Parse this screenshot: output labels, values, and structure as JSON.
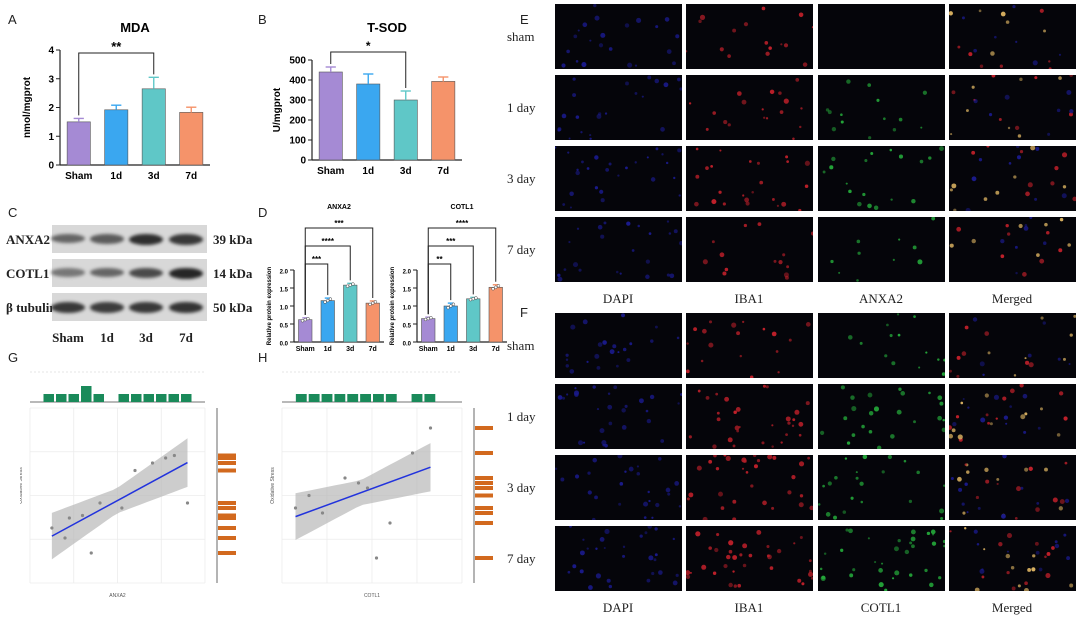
{
  "panels": {
    "A": {
      "letter": "A"
    },
    "B": {
      "letter": "B"
    },
    "C": {
      "letter": "C"
    },
    "D": {
      "letter": "D"
    },
    "E": {
      "letter": "E"
    },
    "F": {
      "letter": "F"
    },
    "G": {
      "letter": "G"
    },
    "H": {
      "letter": "H"
    }
  },
  "chart_data": [
    {
      "id": "A",
      "type": "bar",
      "title": "MDA",
      "ylabel": "nmol/mgprot",
      "categories": [
        "Sham",
        "1d",
        "3d",
        "7d"
      ],
      "values": [
        1.5,
        1.92,
        2.65,
        1.83
      ],
      "errors": [
        0.12,
        0.16,
        0.4,
        0.18
      ],
      "colors": [
        "#a58ad4",
        "#3aa7f0",
        "#5fc7c7",
        "#f5936a"
      ],
      "ylim": [
        0,
        4
      ],
      "yticks": [
        "0",
        "1",
        "2",
        "3",
        "4"
      ],
      "significance": [
        {
          "from": 0,
          "to": 2,
          "label": "**"
        }
      ]
    },
    {
      "id": "B",
      "type": "bar",
      "title": "T-SOD",
      "ylabel": "U/mgprot",
      "categories": [
        "Sham",
        "1d",
        "3d",
        "7d"
      ],
      "values": [
        440,
        380,
        300,
        393
      ],
      "errors": [
        25,
        50,
        45,
        22
      ],
      "colors": [
        "#a58ad4",
        "#3aa7f0",
        "#5fc7c7",
        "#f5936a"
      ],
      "ylim": [
        0,
        500
      ],
      "yticks": [
        "0",
        "100",
        "200",
        "300",
        "400",
        "500"
      ],
      "significance": [
        {
          "from": 0,
          "to": 2,
          "label": "*"
        }
      ]
    },
    {
      "id": "D1",
      "type": "bar",
      "title": "ANXA2",
      "ylabel": "Relative protein expression",
      "categories": [
        "Sham",
        "1d",
        "3d",
        "7d"
      ],
      "values": [
        0.62,
        1.15,
        1.58,
        1.08
      ],
      "errors": [
        0.05,
        0.07,
        0.05,
        0.06
      ],
      "colors": [
        "#a58ad4",
        "#3aa7f0",
        "#5fc7c7",
        "#f5936a"
      ],
      "ylim": [
        0,
        2.0
      ],
      "yticks": [
        "0.0",
        "0.5",
        "1.0",
        "1.5",
        "2.0"
      ],
      "significance": [
        {
          "from": 0,
          "to": 1,
          "label": "***"
        },
        {
          "from": 0,
          "to": 2,
          "label": "****"
        },
        {
          "from": 0,
          "to": 3,
          "label": "***"
        }
      ]
    },
    {
      "id": "D2",
      "type": "bar",
      "title": "COTL1",
      "ylabel": "Relative protein expression",
      "categories": [
        "Sham",
        "1d",
        "3d",
        "7d"
      ],
      "values": [
        0.65,
        1.0,
        1.2,
        1.52
      ],
      "errors": [
        0.04,
        0.08,
        0.04,
        0.07
      ],
      "colors": [
        "#a58ad4",
        "#3aa7f0",
        "#5fc7c7",
        "#f5936a"
      ],
      "ylim": [
        0,
        2.0
      ],
      "yticks": [
        "0.0",
        "0.5",
        "1.0",
        "1.5",
        "2.0"
      ],
      "significance": [
        {
          "from": 0,
          "to": 1,
          "label": "**"
        },
        {
          "from": 0,
          "to": 2,
          "label": "***"
        },
        {
          "from": 0,
          "to": 3,
          "label": "****"
        }
      ]
    },
    {
      "id": "G",
      "type": "scatter",
      "title": "",
      "xlabel": "ANXA2",
      "ylabel": "Oxidative Stress",
      "x": [
        0.5,
        0.9,
        1.4,
        2.1,
        1.6,
        2.4,
        2.8,
        3.6,
        3.1,
        3.3,
        0.8,
        1.2
      ],
      "y": [
        0.32,
        0.36,
        0.22,
        0.4,
        0.42,
        0.55,
        0.58,
        0.42,
        0.6,
        0.61,
        0.28,
        0.37
      ]
    },
    {
      "id": "H",
      "type": "scatter",
      "title": "",
      "xlabel": "COTL1",
      "ylabel": "Oxidative Stress",
      "x": [
        0.3,
        0.6,
        0.9,
        1.4,
        1.9,
        2.1,
        2.4,
        1.7,
        2.9,
        3.3
      ],
      "y": [
        0.4,
        0.45,
        0.38,
        0.52,
        0.48,
        0.2,
        0.34,
        0.5,
        0.62,
        0.72
      ]
    }
  ],
  "western_blot": {
    "rows": [
      "ANXA2",
      "COTL1",
      "β tubulin"
    ],
    "sizes": [
      "39 kDa",
      "14 kDa",
      "50 kDa"
    ],
    "lanes": [
      "Sham",
      "1d",
      "3d",
      "7d"
    ],
    "intensities": [
      [
        0.55,
        0.6,
        0.85,
        0.8
      ],
      [
        0.45,
        0.55,
        0.7,
        0.9
      ],
      [
        0.8,
        0.78,
        0.8,
        0.82
      ]
    ]
  },
  "micrographs": {
    "E": {
      "rows": [
        "sham",
        "1 day",
        "3 day",
        "7 day"
      ],
      "columns": [
        "DAPI",
        "IBA1",
        "ANXA2",
        "Merged"
      ]
    },
    "F": {
      "rows": [
        "sham",
        "1 day",
        "3 day",
        "7 day"
      ],
      "columns": [
        "DAPI",
        "IBA1",
        "COTL1",
        "Merged"
      ]
    }
  },
  "colors": {
    "dapi": "#1a1a8a",
    "iba1": "#c0202a",
    "anxa2": "#24a83a",
    "merged": "#d8b060",
    "regression_line": "#2233dd",
    "histogram": "#1a8a5a",
    "side_bar": "#d2691e"
  }
}
